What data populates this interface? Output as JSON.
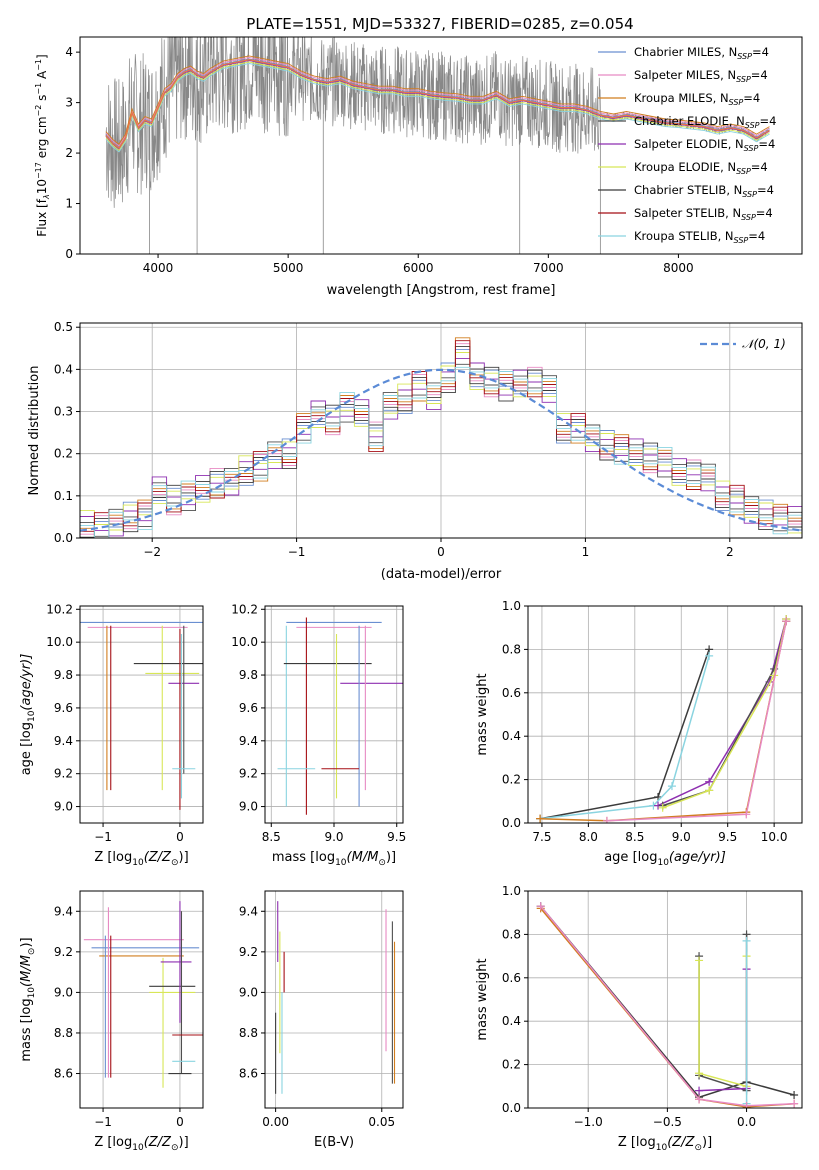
{
  "figure_title": "PLATE=1551, MJD=53327, FIBERID=0285, z=0.054",
  "legend_models": [
    {
      "imf": "Chabrier",
      "lib": "MILES",
      "color": "#6a8fd1"
    },
    {
      "imf": "Salpeter",
      "lib": "MILES",
      "color": "#e78ac3"
    },
    {
      "imf": "Kroupa",
      "lib": "MILES",
      "color": "#d17d1f"
    },
    {
      "imf": "Chabrier",
      "lib": "ELODIE",
      "color": "#4f4f4f"
    },
    {
      "imf": "Salpeter",
      "lib": "ELODIE",
      "color": "#8e2fb0"
    },
    {
      "imf": "Kroupa",
      "lib": "ELODIE",
      "color": "#d8e657"
    },
    {
      "imf": "Chabrier",
      "lib": "STELIB",
      "color": "#3b3b3b"
    },
    {
      "imf": "Salpeter",
      "lib": "STELIB",
      "color": "#a50f15"
    },
    {
      "imf": "Kroupa",
      "lib": "STELIB",
      "color": "#8ad4e0"
    }
  ],
  "legend_suffix": ", N",
  "legend_sub": "SSP",
  "legend_eq": "=4",
  "chart_data": [
    {
      "id": "spectrum",
      "type": "line",
      "xlabel": "wavelength [Angstrom, rest frame]",
      "ylabel_main": "Flux [f",
      "ylabel_sub": "λ",
      "ylabel_mid": "10",
      "ylabel_exp": "−17",
      "ylabel_tail": " erg cm",
      "ylabel_exp2": "−2",
      "ylabel_tail2": " s",
      "ylabel_exp3": "−1",
      "ylabel_tail3": " A",
      "ylabel_exp4": "−1",
      "ylabel_end": "]",
      "xlim": [
        3400,
        8950
      ],
      "ylim": [
        0,
        4.3
      ],
      "xticks": [
        4000,
        5000,
        6000,
        7000,
        8000
      ],
      "yticks": [
        0,
        1,
        2,
        3,
        4
      ],
      "data_color": "#888888",
      "model_color": "#e8764a",
      "model_curve": {
        "x": [
          3600,
          3650,
          3700,
          3750,
          3800,
          3850,
          3900,
          3950,
          4000,
          4050,
          4100,
          4150,
          4200,
          4250,
          4300,
          4350,
          4400,
          4500,
          4600,
          4700,
          4800,
          4900,
          5000,
          5100,
          5200,
          5300,
          5400,
          5500,
          5600,
          5700,
          5800,
          5900,
          6000,
          6100,
          6200,
          6300,
          6400,
          6500,
          6600,
          6700,
          6800,
          6900,
          7000,
          7100,
          7200,
          7300,
          7400,
          7500,
          7600,
          7700,
          7800,
          7900,
          8000,
          8100,
          8200,
          8300,
          8400,
          8500,
          8600,
          8700
        ],
        "y": [
          2.35,
          2.2,
          2.1,
          2.3,
          2.8,
          2.5,
          2.65,
          2.6,
          2.9,
          3.2,
          3.3,
          3.5,
          3.6,
          3.65,
          3.55,
          3.5,
          3.6,
          3.75,
          3.8,
          3.85,
          3.8,
          3.75,
          3.7,
          3.55,
          3.45,
          3.4,
          3.45,
          3.35,
          3.3,
          3.25,
          3.25,
          3.2,
          3.2,
          3.15,
          3.12,
          3.1,
          3.05,
          3.05,
          3.15,
          3.0,
          3.05,
          3.0,
          2.95,
          2.9,
          2.9,
          2.85,
          2.75,
          2.7,
          2.75,
          2.7,
          2.65,
          2.6,
          2.58,
          2.55,
          2.52,
          2.45,
          2.5,
          2.45,
          2.3,
          2.45
        ]
      }
    },
    {
      "id": "residuals",
      "type": "histogram",
      "xlabel": "(data-model)/error",
      "ylabel": "Normed distribution",
      "xlim": [
        -2.5,
        2.5
      ],
      "ylim": [
        0,
        0.51
      ],
      "xticks": [
        -2,
        -1,
        0,
        1,
        2
      ],
      "yticks": [
        0.0,
        0.1,
        0.2,
        0.3,
        0.4,
        0.5
      ],
      "legend_label": "𝒩(0, 1)",
      "normal_color": "#5b8bd6",
      "bin_edges": [
        -2.5,
        -2.4,
        -2.3,
        -2.2,
        -2.1,
        -2.0,
        -1.9,
        -1.8,
        -1.7,
        -1.6,
        -1.5,
        -1.4,
        -1.3,
        -1.2,
        -1.1,
        -1.0,
        -0.9,
        -0.8,
        -0.7,
        -0.6,
        -0.5,
        -0.4,
        -0.3,
        -0.2,
        -0.1,
        0.0,
        0.1,
        0.2,
        0.3,
        0.4,
        0.5,
        0.6,
        0.7,
        0.8,
        0.9,
        1.0,
        1.1,
        1.2,
        1.3,
        1.4,
        1.5,
        1.6,
        1.7,
        1.8,
        1.9,
        2.0,
        2.1,
        2.2,
        2.3,
        2.4,
        2.5
      ],
      "heights": [
        0.03,
        0.025,
        0.04,
        0.05,
        0.055,
        0.11,
        0.09,
        0.1,
        0.12,
        0.13,
        0.13,
        0.16,
        0.17,
        0.2,
        0.2,
        0.26,
        0.29,
        0.28,
        0.31,
        0.3,
        0.24,
        0.31,
        0.33,
        0.36,
        0.34,
        0.38,
        0.44,
        0.38,
        0.37,
        0.36,
        0.37,
        0.37,
        0.35,
        0.26,
        0.26,
        0.24,
        0.22,
        0.21,
        0.2,
        0.19,
        0.18,
        0.16,
        0.15,
        0.14,
        0.1,
        0.09,
        0.07,
        0.055,
        0.045,
        0.04
      ]
    },
    {
      "id": "age_vs_Z",
      "type": "errorbar",
      "xlabel": "Z [log",
      "xlabel_sub": "10",
      "xlabel_mid": "(Z/Z",
      "xlabel_sub2": "⊙",
      "xlabel_end": ")]",
      "ylabel": "age  [log",
      "ylabel_sub": "10",
      "ylabel_end": "(age/yr)]",
      "xlim": [
        -1.3,
        0.3
      ],
      "ylim": [
        8.9,
        10.22
      ],
      "xticks": [
        -1,
        0
      ],
      "xtick_labels": [
        "−1",
        "0"
      ],
      "yticks": [
        9.0,
        9.2,
        9.4,
        9.6,
        9.8,
        10.0,
        10.2
      ],
      "points": [
        {
          "x": -0.45,
          "xerr": 0.85,
          "y": 10.12,
          "yerr": 0.0,
          "c": 0
        },
        {
          "x": -0.55,
          "xerr": 0.65,
          "y": 10.09,
          "yerr": 0.0,
          "c": 1
        },
        {
          "x": -0.95,
          "xerr": 0.0,
          "y": 9.6,
          "yerr": 0.5,
          "c": 2
        },
        {
          "x": -0.9,
          "xerr": 0.0,
          "y": 9.6,
          "yerr": 0.5,
          "c": 7
        },
        {
          "x": -0.23,
          "xerr": 0.0,
          "y": 9.6,
          "yerr": 0.5,
          "c": 5
        },
        {
          "x": -0.15,
          "xerr": 0.45,
          "y": 9.87,
          "yerr": 0.0,
          "c": 6
        },
        {
          "x": -0.1,
          "xerr": 0.35,
          "y": 9.81,
          "yerr": 0.0,
          "c": 5
        },
        {
          "x": 0.05,
          "xerr": 0.2,
          "y": 9.75,
          "yerr": 0.0,
          "c": 4
        },
        {
          "x": 0.0,
          "xerr": 0.0,
          "y": 9.53,
          "yerr": 0.55,
          "c": 7
        },
        {
          "x": 0.02,
          "xerr": 0.0,
          "y": 9.55,
          "yerr": 0.5,
          "c": 8
        },
        {
          "x": 0.05,
          "xerr": 0.0,
          "y": 9.65,
          "yerr": 0.45,
          "c": 3
        },
        {
          "x": 0.05,
          "xerr": 0.15,
          "y": 9.23,
          "yerr": 0.0,
          "c": 8
        }
      ]
    },
    {
      "id": "age_vs_mass",
      "type": "errorbar",
      "xlabel": "mass [log",
      "xlabel_sub": "10",
      "xlabel_mid": "(M/M",
      "xlabel_sub2": "⊙",
      "xlabel_end": ")]",
      "xlim": [
        8.45,
        9.55
      ],
      "ylim": [
        8.9,
        10.22
      ],
      "xticks": [
        8.5,
        9.0,
        9.5
      ],
      "yticks": [
        9.0,
        9.2,
        9.4,
        9.6,
        9.8,
        10.0,
        10.2
      ],
      "points": [
        {
          "x": 9.0,
          "xerr": 0.38,
          "y": 10.12,
          "yerr": 0.0,
          "c": 0
        },
        {
          "x": 9.0,
          "xerr": 0.3,
          "y": 10.09,
          "yerr": 0.0,
          "c": 1
        },
        {
          "x": 8.78,
          "xerr": 0.0,
          "y": 9.55,
          "yerr": 0.6,
          "c": 7
        },
        {
          "x": 8.62,
          "xerr": 0.0,
          "y": 9.55,
          "yerr": 0.55,
          "c": 8
        },
        {
          "x": 8.95,
          "xerr": 0.35,
          "y": 9.87,
          "yerr": 0.0,
          "c": 6
        },
        {
          "x": 9.02,
          "xerr": 0.0,
          "y": 9.55,
          "yerr": 0.5,
          "c": 5
        },
        {
          "x": 9.3,
          "xerr": 0.25,
          "y": 9.75,
          "yerr": 0.0,
          "c": 4
        },
        {
          "x": 9.2,
          "xerr": 0.0,
          "y": 9.55,
          "yerr": 0.55,
          "c": 0
        },
        {
          "x": 9.25,
          "xerr": 0.0,
          "y": 9.6,
          "yerr": 0.5,
          "c": 1
        },
        {
          "x": 8.7,
          "xerr": 0.15,
          "y": 9.23,
          "yerr": 0.0,
          "c": 8
        },
        {
          "x": 9.05,
          "xerr": 0.15,
          "y": 9.23,
          "yerr": 0.0,
          "c": 7
        }
      ]
    },
    {
      "id": "massweight_vs_age",
      "type": "line",
      "xlabel": "age  [log",
      "xlabel_sub": "10",
      "xlabel_end": "(age/yr)]",
      "ylabel": "mass weight",
      "xlim": [
        7.35,
        10.3
      ],
      "ylim": [
        0.0,
        1.0
      ],
      "xticks": [
        7.5,
        8.0,
        8.5,
        9.0,
        9.5,
        10.0
      ],
      "yticks": [
        0.0,
        0.2,
        0.4,
        0.6,
        0.8,
        1.0
      ],
      "series": [
        {
          "c": 6,
          "x": [
            7.48,
            8.75,
            9.3
          ],
          "y": [
            0.02,
            0.12,
            0.8
          ]
        },
        {
          "c": 8,
          "x": [
            7.48,
            8.7,
            8.9,
            9.3
          ],
          "y": [
            0.02,
            0.08,
            0.17,
            0.77
          ]
        },
        {
          "c": 4,
          "x": [
            8.75,
            9.3,
            9.95,
            10.13
          ],
          "y": [
            0.08,
            0.19,
            0.65,
            0.94
          ]
        },
        {
          "c": 3,
          "x": [
            8.8,
            9.3,
            10.0,
            10.13
          ],
          "y": [
            0.08,
            0.15,
            0.71,
            0.93
          ]
        },
        {
          "c": 5,
          "x": [
            8.8,
            9.3,
            10.0,
            10.13
          ],
          "y": [
            0.07,
            0.15,
            0.68,
            0.94
          ]
        },
        {
          "c": 2,
          "x": [
            7.48,
            8.2,
            9.7,
            10.13
          ],
          "y": [
            0.02,
            0.01,
            0.05,
            0.93
          ]
        },
        {
          "c": 1,
          "x": [
            8.2,
            9.7,
            10.13
          ],
          "y": [
            0.01,
            0.04,
            0.93
          ]
        }
      ]
    },
    {
      "id": "mass_vs_Z",
      "type": "errorbar",
      "xlabel": "Z [log",
      "xlabel_sub": "10",
      "xlabel_mid": "(Z/Z",
      "xlabel_sub2": "⊙",
      "xlabel_end": ")]",
      "ylabel": "mass [log",
      "ylabel_sub": "10",
      "ylabel_mid": "(M/M",
      "ylabel_sub2": "⊙",
      "ylabel_end": ")]",
      "xlim": [
        -1.3,
        0.3
      ],
      "ylim": [
        8.43,
        9.5
      ],
      "xticks": [
        -1,
        0
      ],
      "xtick_labels": [
        "−1",
        "0"
      ],
      "yticks": [
        8.6,
        8.8,
        9.0,
        9.2,
        9.4
      ],
      "points": [
        {
          "x": -0.6,
          "xerr": 0.65,
          "y": 9.26,
          "yerr": 0.0,
          "c": 1
        },
        {
          "x": -0.45,
          "xerr": 0.7,
          "y": 9.22,
          "yerr": 0.0,
          "c": 0
        },
        {
          "x": -0.5,
          "xerr": 0.55,
          "y": 9.18,
          "yerr": 0.0,
          "c": 2
        },
        {
          "x": -0.97,
          "xerr": 0.0,
          "y": 8.93,
          "yerr": 0.35,
          "c": 0
        },
        {
          "x": -0.93,
          "xerr": 0.0,
          "y": 9.0,
          "yerr": 0.42,
          "c": 1
        },
        {
          "x": -0.9,
          "xerr": 0.0,
          "y": 8.93,
          "yerr": 0.35,
          "c": 7
        },
        {
          "x": -0.22,
          "xerr": 0.0,
          "y": 8.85,
          "yerr": 0.32,
          "c": 5
        },
        {
          "x": -0.1,
          "xerr": 0.3,
          "y": 9.03,
          "yerr": 0.0,
          "c": 6
        },
        {
          "x": -0.1,
          "xerr": 0.3,
          "y": 9.0,
          "yerr": 0.0,
          "c": 5
        },
        {
          "x": -0.05,
          "xerr": 0.2,
          "y": 9.15,
          "yerr": 0.0,
          "c": 4
        },
        {
          "x": 0.0,
          "xerr": 0.0,
          "y": 9.15,
          "yerr": 0.3,
          "c": 4
        },
        {
          "x": 0.02,
          "xerr": 0.0,
          "y": 9.0,
          "yerr": 0.4,
          "c": 3
        },
        {
          "x": 0.1,
          "xerr": 0.2,
          "y": 8.79,
          "yerr": 0.0,
          "c": 7
        },
        {
          "x": 0.05,
          "xerr": 0.15,
          "y": 8.66,
          "yerr": 0.0,
          "c": 8
        },
        {
          "x": 0.0,
          "xerr": 0.15,
          "y": 8.6,
          "yerr": 0.0,
          "c": 6
        }
      ]
    },
    {
      "id": "mass_vs_ebv",
      "type": "errorbar",
      "xlabel": "E(B-V)",
      "xlim": [
        -0.005,
        0.06
      ],
      "ylim": [
        8.43,
        9.5
      ],
      "xticks": [
        0.0,
        0.05
      ],
      "xtick_labels": [
        "0.00",
        "0.05"
      ],
      "yticks": [
        8.6,
        8.8,
        9.0,
        9.2,
        9.4
      ],
      "points": [
        {
          "x": 0.0,
          "xerr": 0.0,
          "y": 8.7,
          "yerr": 0.2,
          "c": 6
        },
        {
          "x": 0.001,
          "xerr": 0.0,
          "y": 9.3,
          "yerr": 0.15,
          "c": 4
        },
        {
          "x": 0.002,
          "xerr": 0.0,
          "y": 9.0,
          "yerr": 0.3,
          "c": 5
        },
        {
          "x": 0.003,
          "xerr": 0.0,
          "y": 8.75,
          "yerr": 0.25,
          "c": 8
        },
        {
          "x": 0.004,
          "xerr": 0.0,
          "y": 9.1,
          "yerr": 0.1,
          "c": 7
        },
        {
          "x": 0.052,
          "xerr": 0.0,
          "y": 9.06,
          "yerr": 0.35,
          "c": 1
        },
        {
          "x": 0.055,
          "xerr": 0.0,
          "y": 8.95,
          "yerr": 0.4,
          "c": 3
        },
        {
          "x": 0.056,
          "xerr": 0.0,
          "y": 8.9,
          "yerr": 0.35,
          "c": 2
        }
      ]
    },
    {
      "id": "massweight_vs_Z",
      "type": "line",
      "xlabel": "Z [log",
      "xlabel_sub": "10",
      "xlabel_mid": "(Z/Z",
      "xlabel_sub2": "⊙",
      "xlabel_end": ")]",
      "ylabel": "mass weight",
      "xlim": [
        -1.38,
        0.35
      ],
      "ylim": [
        0.0,
        1.0
      ],
      "xticks": [
        -1.0,
        -0.5,
        0.0
      ],
      "xtick_labels": [
        "−1.0",
        "−0.5",
        "0.0"
      ],
      "yticks": [
        0.0,
        0.2,
        0.4,
        0.6,
        0.8,
        1.0
      ],
      "series": [
        {
          "c": 6,
          "x": [
            -1.3,
            -0.3,
            0.0,
            0.3
          ],
          "y": [
            0.93,
            0.05,
            0.12,
            0.06
          ]
        },
        {
          "c": 3,
          "x": [
            -0.3,
            -0.3,
            0.0,
            0.0
          ],
          "y": [
            0.7,
            0.15,
            0.08,
            0.8
          ]
        },
        {
          "c": 5,
          "x": [
            -0.3,
            -0.3,
            0.0,
            0.0
          ],
          "y": [
            0.68,
            0.16,
            0.1,
            0.7
          ]
        },
        {
          "c": 4,
          "x": [
            -0.3,
            0.0,
            0.0
          ],
          "y": [
            0.08,
            0.09,
            0.64
          ]
        },
        {
          "c": 8,
          "x": [
            0.0,
            0.0
          ],
          "y": [
            0.77,
            0.02
          ]
        },
        {
          "c": 2,
          "x": [
            -1.3,
            -0.3,
            0.0,
            0.3
          ],
          "y": [
            0.92,
            0.04,
            0.005,
            0.02
          ]
        },
        {
          "c": 1,
          "x": [
            -1.3,
            -0.3,
            0.0,
            0.3
          ],
          "y": [
            0.93,
            0.04,
            0.01,
            0.02
          ]
        }
      ]
    }
  ]
}
